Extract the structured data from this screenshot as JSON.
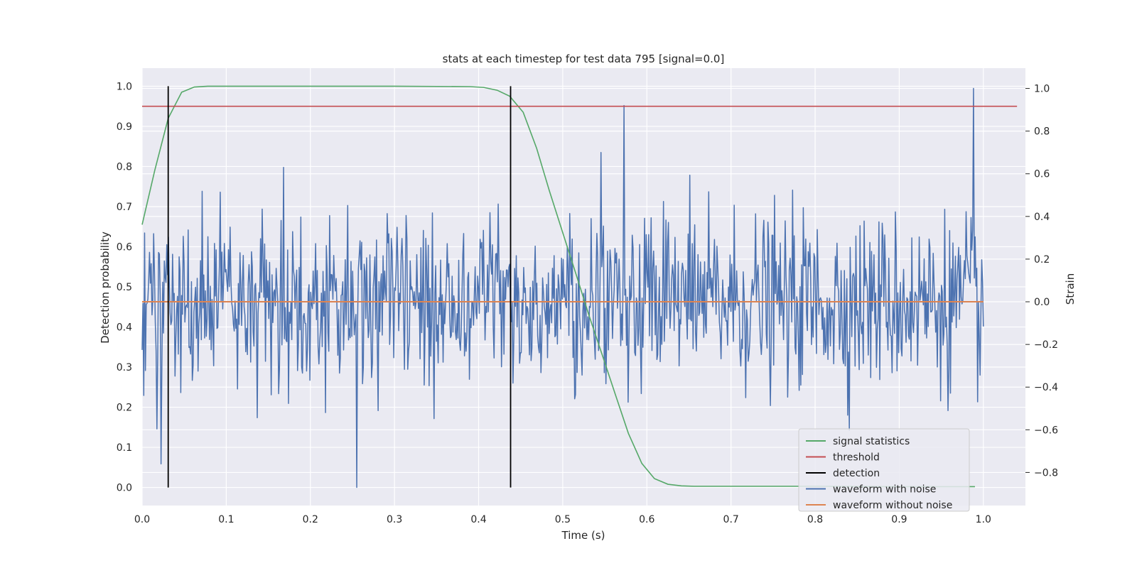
{
  "chart_data": {
    "type": "line",
    "title": "stats at each timestep for test data 795 [signal=0.0]",
    "xlabel": "Time (s)",
    "ylabel_left": "Detection probability",
    "ylabel_right": "Strain",
    "xlim": [
      0.0,
      1.05
    ],
    "ylim_left": [
      -0.045,
      1.045
    ],
    "ylim_right": [
      -0.955,
      1.095
    ],
    "xticks": [
      "0.0",
      "0.1",
      "0.2",
      "0.3",
      "0.4",
      "0.5",
      "0.6",
      "0.7",
      "0.8",
      "0.9",
      "1.0"
    ],
    "yticks_left": [
      "0.0",
      "0.1",
      "0.2",
      "0.3",
      "0.4",
      "0.5",
      "0.6",
      "0.7",
      "0.8",
      "0.9",
      "1.0"
    ],
    "yticks_right": [
      "−0.8",
      "−0.6",
      "−0.4",
      "−0.2",
      "0.0",
      "0.2",
      "0.4",
      "0.6",
      "0.8",
      "1.0"
    ],
    "grid": true,
    "legend_position": "lower-right",
    "legend": [
      "signal statistics",
      "threshold",
      "detection",
      "waveform with noise",
      "waveform without noise"
    ],
    "series": [
      {
        "name": "signal statistics",
        "axis": "left",
        "color": "#55a868",
        "x": [
          0.0,
          0.015,
          0.031,
          0.047,
          0.062,
          0.078,
          0.094,
          0.2,
          0.3,
          0.39,
          0.406,
          0.422,
          0.437,
          0.453,
          0.469,
          0.484,
          0.5,
          0.516,
          0.531,
          0.547,
          0.562,
          0.578,
          0.594,
          0.609,
          0.625,
          0.641,
          0.656,
          0.7,
          0.8,
          0.9,
          0.99
        ],
        "y": [
          0.655,
          0.79,
          0.92,
          0.985,
          0.998,
          1.0,
          1.0,
          1.0,
          1.0,
          0.999,
          0.997,
          0.99,
          0.975,
          0.935,
          0.845,
          0.74,
          0.635,
          0.53,
          0.43,
          0.33,
          0.235,
          0.135,
          0.06,
          0.022,
          0.008,
          0.004,
          0.003,
          0.003,
          0.003,
          0.002,
          0.002
        ]
      },
      {
        "name": "threshold",
        "axis": "left",
        "color": "#c44e52",
        "x": [
          0.0,
          1.04
        ],
        "y": [
          0.95,
          0.95
        ]
      },
      {
        "name": "detection",
        "axis": "left",
        "color": "#000000",
        "x": [
          0.031,
          0.438
        ],
        "y_range": [
          0.0,
          1.0
        ]
      },
      {
        "name": "waveform with noise",
        "axis": "right",
        "color": "#4c72b0",
        "x_range": [
          0.0,
          1.0
        ],
        "num_samples": 1024,
        "amplitude_std": 0.2,
        "highlights": [
          {
            "x": 0.255,
            "y": -0.87
          },
          {
            "x": 0.573,
            "y": 0.92
          },
          {
            "x": 0.988,
            "y": 1.0
          },
          {
            "x": 0.022,
            "y": -0.76
          },
          {
            "x": 0.168,
            "y": 0.63
          },
          {
            "x": 0.545,
            "y": 0.7
          }
        ]
      },
      {
        "name": "waveform without noise",
        "axis": "right",
        "color": "#dd8452",
        "x": [
          0.0,
          1.0
        ],
        "y": [
          0.0,
          0.0
        ]
      }
    ]
  }
}
